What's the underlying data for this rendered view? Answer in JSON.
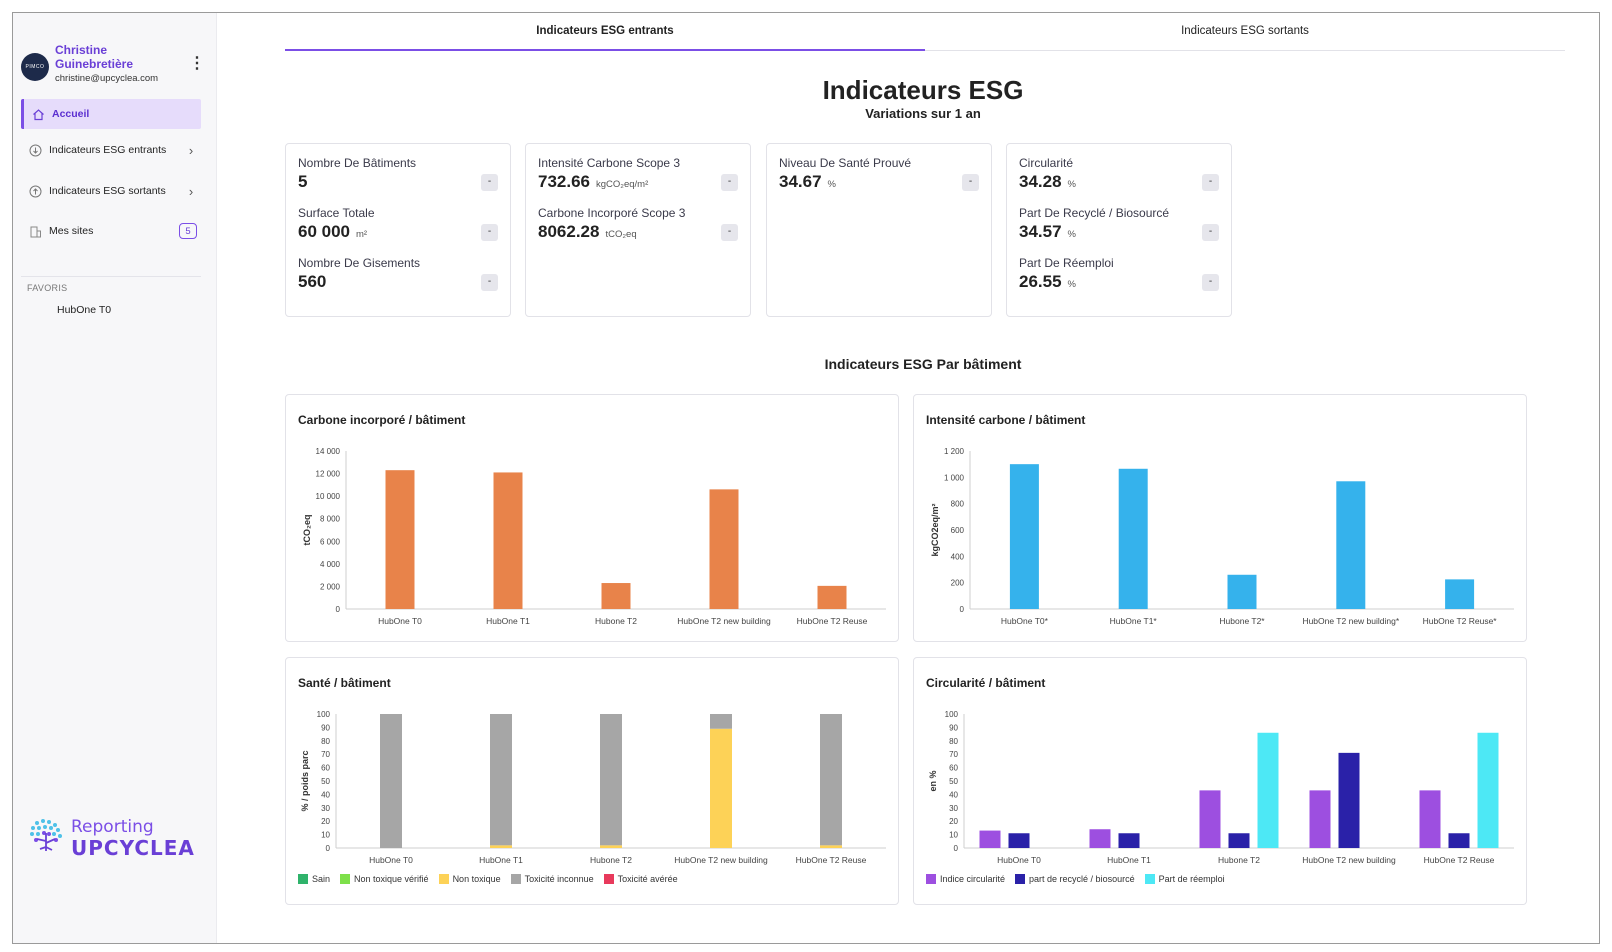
{
  "user": {
    "name": "Christine Guinebretière",
    "email": "christine@upcyclea.com",
    "avatar_text": "PIMCO"
  },
  "sidebar": {
    "items": [
      {
        "label": "Accueil",
        "icon": "home-icon",
        "active": true
      },
      {
        "label": "Indicateurs ESG entrants",
        "icon": "arrow-down-circle-icon"
      },
      {
        "label": "Indicateurs ESG sortants",
        "icon": "arrow-up-circle-icon"
      },
      {
        "label": "Mes sites",
        "icon": "building-icon",
        "badge": "5"
      }
    ],
    "favorites_title": "FAVORIS",
    "favorites": [
      "HubOne T0"
    ],
    "logo_line1": "Reporting",
    "logo_line2": "UPCYCLEA"
  },
  "tabs": [
    "Indicateurs ESG entrants",
    "Indicateurs ESG sortants"
  ],
  "page": {
    "title": "Indicateurs ESG",
    "subtitle": "Variations sur 1 an",
    "section_title": "Indicateurs ESG Par bâtiment"
  },
  "kpis": [
    {
      "rows": [
        {
          "label": "Nombre De Bâtiments",
          "value": "5",
          "unit": "",
          "delta": "-"
        },
        {
          "label": "Surface Totale",
          "value": "60 000",
          "unit": "m²",
          "delta": "-"
        },
        {
          "label": "Nombre De Gisements",
          "value": "560",
          "unit": "",
          "delta": "-"
        }
      ]
    },
    {
      "rows": [
        {
          "label": "Intensité Carbone Scope 3",
          "value": "732.66",
          "unit": "kgCO₂eq/m²",
          "delta": "-"
        },
        {
          "label": "Carbone Incorporé Scope 3",
          "value": "8062.28",
          "unit": "tCO₂eq",
          "delta": "-"
        }
      ]
    },
    {
      "rows": [
        {
          "label": "Niveau De Santé Prouvé",
          "value": "34.67",
          "unit": "%",
          "delta": "-"
        }
      ]
    },
    {
      "rows": [
        {
          "label": "Circularité",
          "value": "34.28",
          "unit": "%",
          "delta": "-"
        },
        {
          "label": "Part De Recyclé / Biosourcé",
          "value": "34.57",
          "unit": "%",
          "delta": "-"
        },
        {
          "label": "Part De Réemploi",
          "value": "26.55",
          "unit": "%",
          "delta": "-"
        }
      ]
    }
  ],
  "chart_data": [
    {
      "type": "bar",
      "title": "Carbone incorporé / bâtiment",
      "ylabel": "tCO₂eq",
      "categories": [
        "HubOne T0",
        "HubOne T1",
        "Hubone T2",
        "HubOne T2 new building",
        "HubOne T2 Reuse"
      ],
      "series": [
        {
          "values": [
            12300,
            12100,
            2300,
            10600,
            2050
          ],
          "color": "#e8834a"
        }
      ],
      "ylim": [
        0,
        14000
      ],
      "yticks": [
        0,
        2000,
        4000,
        6000,
        8000,
        10000,
        12000,
        14000
      ],
      "ytick_labels": [
        "0",
        "2 000",
        "4 000",
        "6 000",
        "8 000",
        "10 000",
        "12 000",
        "14 000"
      ],
      "stacked": false
    },
    {
      "type": "bar",
      "title": "Intensité carbone / bâtiment",
      "ylabel": "kgCO2eq/m²",
      "categories": [
        "HubOne T0*",
        "HubOne T1*",
        "Hubone T2*",
        "HubOne T2 new building*",
        "HubOne T2 Reuse*"
      ],
      "series": [
        {
          "values": [
            1100,
            1065,
            260,
            970,
            225
          ],
          "color": "#35b2ec"
        }
      ],
      "ylim": [
        0,
        1200
      ],
      "yticks": [
        0,
        200,
        400,
        600,
        800,
        1000,
        1200
      ],
      "ytick_labels": [
        "0",
        "200",
        "400",
        "600",
        "800",
        "1 000",
        "1 200"
      ],
      "stacked": false
    },
    {
      "type": "bar",
      "title": "Santé / bâtiment",
      "ylabel": "% / poids parc",
      "categories": [
        "HubOne T0",
        "HubOne T1",
        "Hubone T2",
        "HubOne T2 new building",
        "HubOne T2 Reuse"
      ],
      "stacked": true,
      "series": [
        {
          "name": "Sain",
          "values": [
            0,
            0,
            0,
            0,
            0
          ],
          "color": "#2fb36b"
        },
        {
          "name": "Non toxique vérifié",
          "values": [
            0,
            0,
            0,
            0,
            0
          ],
          "color": "#7ee04a"
        },
        {
          "name": "Non toxique",
          "values": [
            0,
            2,
            2,
            89,
            2
          ],
          "color": "#fdd257"
        },
        {
          "name": "Toxicité inconnue",
          "values": [
            100,
            98,
            98,
            11,
            98
          ],
          "color": "#a6a6a6"
        },
        {
          "name": "Toxicité avérée",
          "values": [
            0,
            0,
            0,
            0,
            0
          ],
          "color": "#e83a5c"
        }
      ],
      "ylim": [
        0,
        100
      ],
      "yticks": [
        0,
        10,
        20,
        30,
        40,
        50,
        60,
        70,
        80,
        90,
        100
      ],
      "ytick_labels": [
        "0",
        "10",
        "20",
        "30",
        "40",
        "50",
        "60",
        "70",
        "80",
        "90",
        "100"
      ],
      "legend": "bottom-left"
    },
    {
      "type": "bar",
      "title": "Circularité / bâtiment",
      "ylabel": "en %",
      "categories": [
        "HubOne T0",
        "HubOne T1",
        "Hubone T2",
        "HubOne T2 new building",
        "HubOne T2 Reuse"
      ],
      "stacked": false,
      "series": [
        {
          "name": "Indice circularité",
          "values": [
            13,
            14,
            43,
            43,
            43
          ],
          "color": "#9d4fe0"
        },
        {
          "name": "part de recyclé / biosourcé",
          "values": [
            11,
            11,
            11,
            71,
            11
          ],
          "color": "#2a21a8"
        },
        {
          "name": "Part de réemploi",
          "values": [
            0,
            0,
            86,
            0,
            86
          ],
          "color": "#4de8f5"
        }
      ],
      "ylim": [
        0,
        100
      ],
      "yticks": [
        0,
        10,
        20,
        30,
        40,
        50,
        60,
        70,
        80,
        90,
        100
      ],
      "ytick_labels": [
        "0",
        "10",
        "20",
        "30",
        "40",
        "50",
        "60",
        "70",
        "80",
        "90",
        "100"
      ],
      "legend": "bottom-left"
    }
  ]
}
